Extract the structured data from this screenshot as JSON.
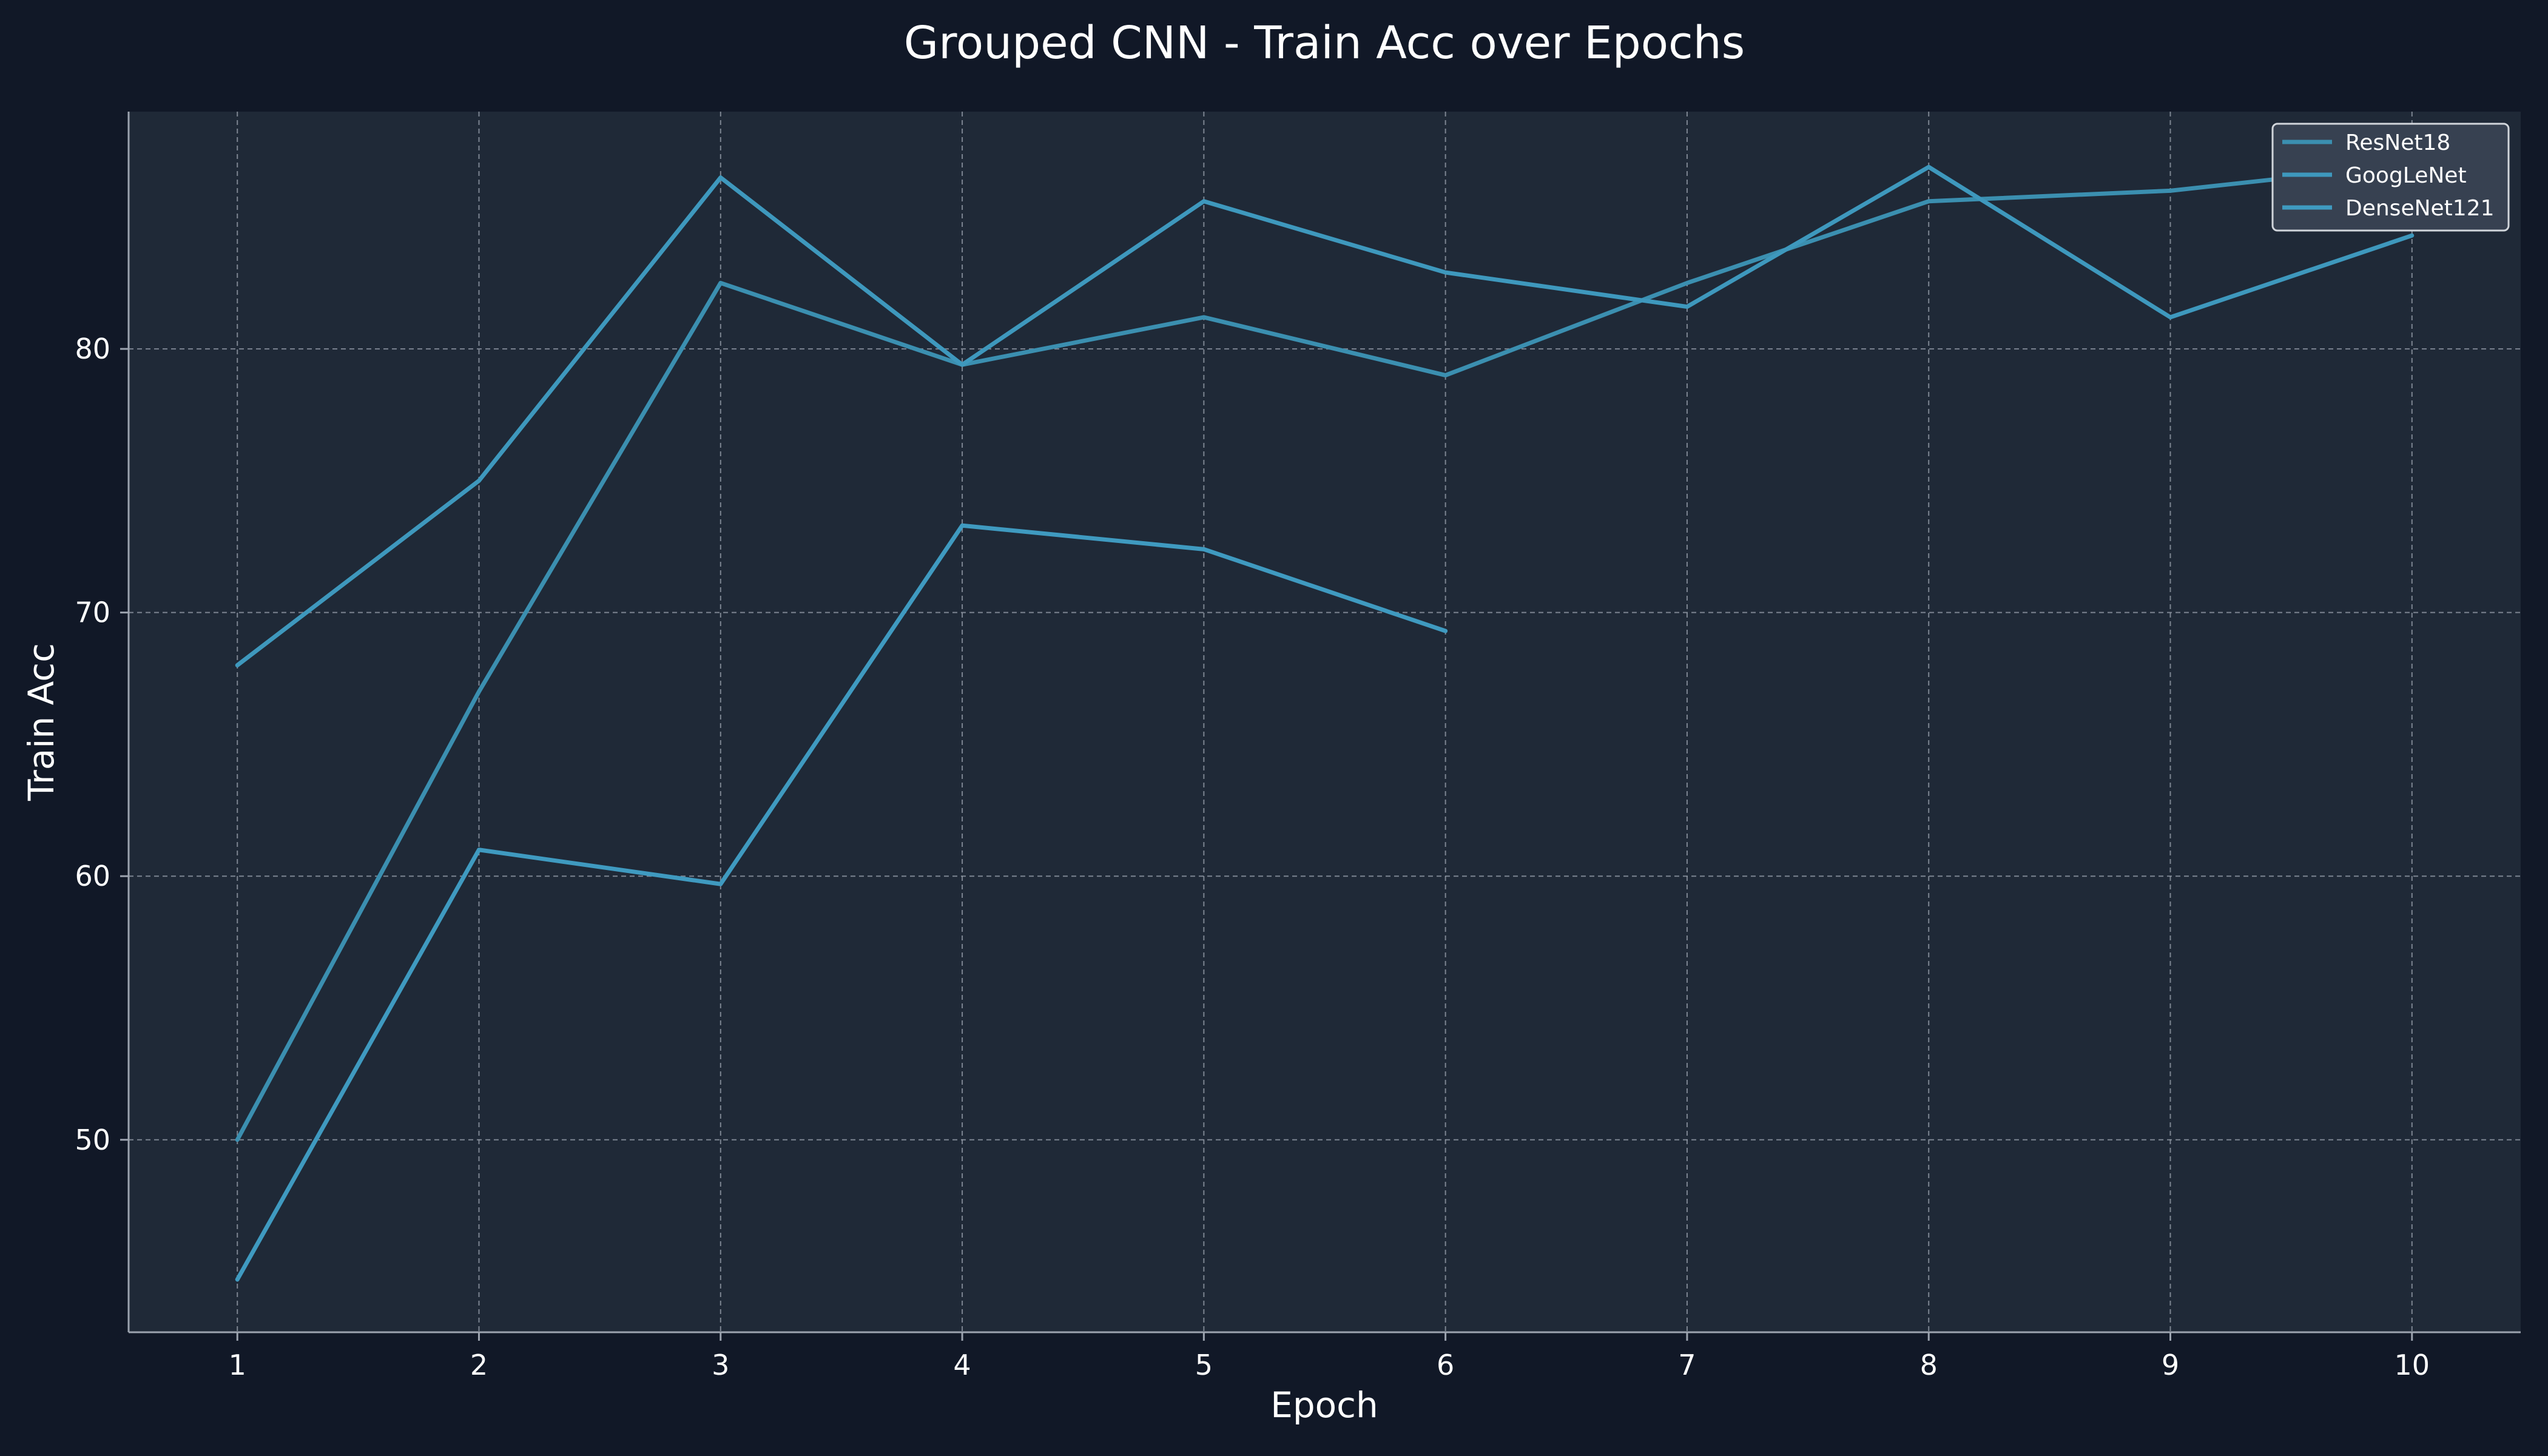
{
  "chart_data": {
    "type": "line",
    "title": "Grouped CNN - Train Acc over Epochs",
    "xlabel": "Epoch",
    "ylabel": "Train Acc",
    "x": [
      1,
      2,
      3,
      4,
      5,
      6,
      7,
      8,
      9,
      10
    ],
    "xticks": [
      "1",
      "2",
      "3",
      "4",
      "5",
      "6",
      "7",
      "8",
      "9",
      "10"
    ],
    "yticks": [
      "50",
      "60",
      "70",
      "80"
    ],
    "xlim": [
      0.55,
      10.45
    ],
    "ylim": [
      42.7,
      89.0
    ],
    "grid": true,
    "legend_position": "top-right",
    "series": [
      {
        "name": "ResNet18",
        "color": "#3b8fb0",
        "x": [
          1,
          2,
          3,
          4,
          5,
          6,
          7,
          8,
          9,
          10
        ],
        "values": [
          50.0,
          67.0,
          82.5,
          79.4,
          81.2,
          79.0,
          82.5,
          85.6,
          86.0,
          87.0
        ]
      },
      {
        "name": "GoogLeNet",
        "color": "#3e98bd",
        "x": [
          1,
          2,
          3,
          4,
          5,
          6,
          7,
          8,
          9,
          10
        ],
        "values": [
          68.0,
          75.0,
          86.5,
          79.4,
          85.6,
          82.9,
          81.6,
          86.9,
          81.2,
          84.3
        ]
      },
      {
        "name": "DenseNet121",
        "color": "#3f9ac0",
        "x": [
          1,
          2,
          3,
          4,
          5,
          6
        ],
        "values": [
          44.7,
          61.0,
          59.7,
          73.3,
          72.4,
          69.3
        ]
      }
    ]
  }
}
